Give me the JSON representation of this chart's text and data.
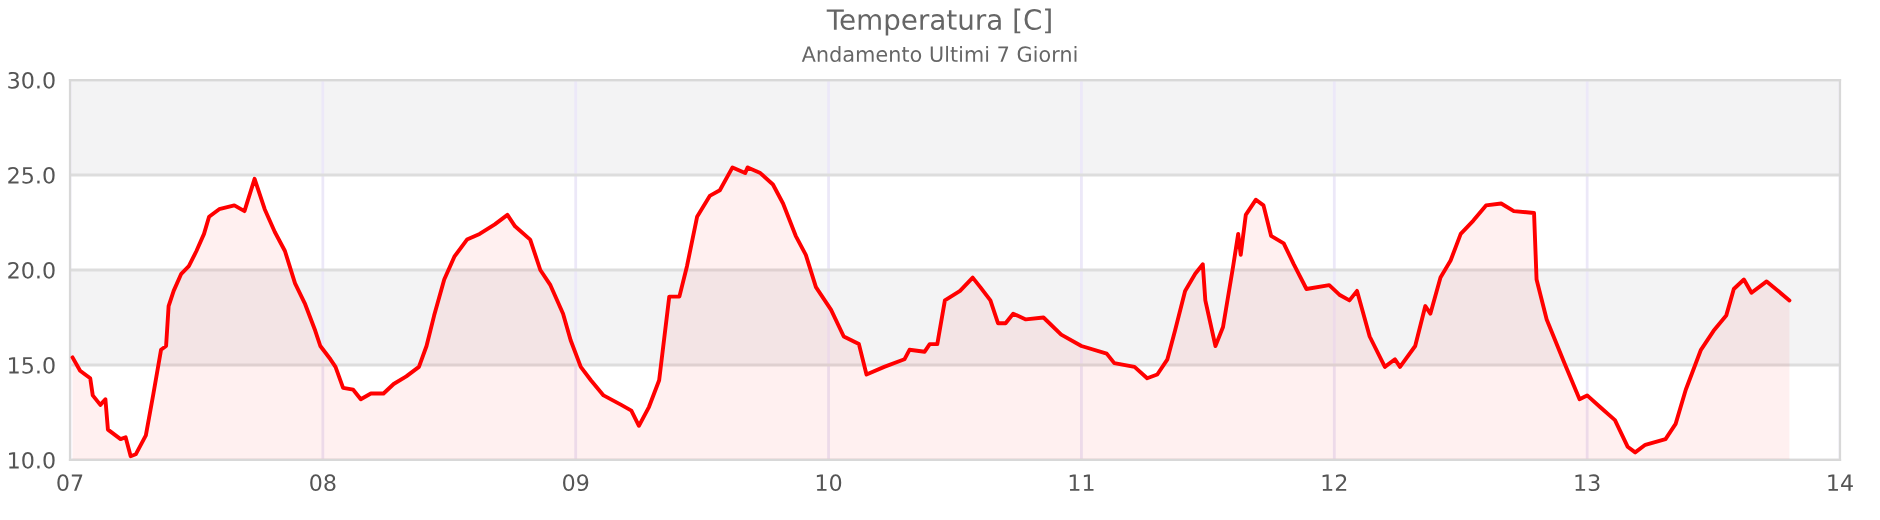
{
  "chart_data": {
    "type": "area",
    "title": "Temperatura [C]",
    "subtitle": "Andamento Ultimi 7 Giorni",
    "series": [
      {
        "color": "#ff0000",
        "x": [
          7.01,
          7.04,
          7.08,
          7.09,
          7.12,
          7.14,
          7.15,
          7.2,
          7.22,
          7.24,
          7.26,
          7.3,
          7.33,
          7.36,
          7.38,
          7.39,
          7.41,
          7.44,
          7.47,
          7.5,
          7.53,
          7.55,
          7.59,
          7.65,
          7.69,
          7.73,
          7.77,
          7.81,
          7.85,
          7.89,
          7.93,
          7.97,
          7.99,
          8.03,
          8.05,
          8.08,
          8.12,
          8.15,
          8.19,
          8.24,
          8.28,
          8.33,
          8.38,
          8.41,
          8.44,
          8.48,
          8.52,
          8.57,
          8.62,
          8.68,
          8.73,
          8.76,
          8.82,
          8.86,
          8.9,
          8.95,
          8.98,
          9.02,
          9.06,
          9.11,
          9.18,
          9.22,
          9.25,
          9.29,
          9.33,
          9.37,
          9.41,
          9.44,
          9.48,
          9.53,
          9.57,
          9.62,
          9.67,
          9.68,
          9.73,
          9.78,
          9.82,
          9.87,
          9.91,
          9.95,
          10.01,
          10.06,
          10.12,
          10.15,
          10.22,
          10.3,
          10.32,
          10.38,
          10.4,
          10.43,
          10.46,
          10.52,
          10.57,
          10.6,
          10.64,
          10.67,
          10.7,
          10.73,
          10.78,
          10.85,
          10.92,
          11.0,
          11.1,
          11.13,
          11.21,
          11.26,
          11.3,
          11.34,
          11.37,
          11.41,
          11.45,
          11.48,
          11.49,
          11.53,
          11.56,
          11.6,
          11.62,
          11.63,
          11.65,
          11.69,
          11.72,
          11.75,
          11.8,
          11.84,
          11.89,
          11.98,
          12.02,
          12.06,
          12.09,
          12.14,
          12.2,
          12.24,
          12.26,
          12.32,
          12.36,
          12.38,
          12.42,
          12.46,
          12.5,
          12.55,
          12.6,
          12.66,
          12.71,
          12.79,
          12.8,
          12.84,
          12.91,
          12.97,
          13.0,
          13.05,
          13.11,
          13.16,
          13.19,
          13.23,
          13.31,
          13.35,
          13.39,
          13.45,
          13.5,
          13.55,
          13.58,
          13.62,
          13.65,
          13.71,
          13.8
        ],
        "values": [
          15.4,
          14.7,
          14.3,
          13.4,
          12.9,
          13.2,
          11.6,
          11.1,
          11.2,
          10.2,
          10.3,
          11.3,
          13.5,
          15.8,
          16.0,
          18.1,
          18.9,
          19.8,
          20.2,
          21.0,
          21.9,
          22.8,
          23.2,
          23.4,
          23.1,
          24.8,
          23.2,
          22.0,
          21.0,
          19.3,
          18.2,
          16.8,
          16.0,
          15.3,
          14.9,
          13.8,
          13.7,
          13.2,
          13.5,
          13.5,
          14.0,
          14.4,
          14.9,
          16.0,
          17.6,
          19.5,
          20.7,
          21.6,
          21.9,
          22.4,
          22.9,
          22.3,
          21.6,
          20.0,
          19.2,
          17.7,
          16.3,
          14.9,
          14.2,
          13.4,
          12.9,
          12.6,
          11.8,
          12.8,
          14.2,
          18.6,
          18.6,
          20.2,
          22.8,
          23.9,
          24.2,
          25.4,
          25.1,
          25.4,
          25.1,
          24.5,
          23.5,
          21.8,
          20.8,
          19.1,
          17.9,
          16.5,
          16.1,
          14.5,
          14.9,
          15.3,
          15.8,
          15.7,
          16.1,
          16.1,
          18.4,
          18.9,
          19.6,
          19.1,
          18.4,
          17.2,
          17.2,
          17.7,
          17.4,
          17.5,
          16.6,
          16.0,
          15.6,
          15.1,
          14.9,
          14.3,
          14.5,
          15.3,
          16.8,
          18.9,
          19.8,
          20.3,
          18.4,
          16.0,
          17.0,
          20.2,
          21.9,
          20.8,
          22.9,
          23.7,
          23.4,
          21.8,
          21.4,
          20.3,
          19.0,
          19.2,
          18.7,
          18.4,
          18.9,
          16.5,
          14.9,
          15.3,
          14.9,
          16.0,
          18.1,
          17.7,
          19.6,
          20.5,
          21.9,
          22.6,
          23.4,
          23.5,
          23.1,
          23.0,
          19.5,
          17.4,
          15.1,
          13.2,
          13.4,
          12.8,
          12.1,
          10.7,
          10.4,
          10.8,
          11.1,
          11.9,
          13.7,
          15.8,
          16.8,
          17.6,
          19.0,
          19.5,
          18.8,
          19.4,
          18.4
        ]
      }
    ],
    "xlim": [
      7,
      14
    ],
    "xticks": [
      {
        "value": 7,
        "label": "07"
      },
      {
        "value": 8,
        "label": "08"
      },
      {
        "value": 9,
        "label": "09"
      },
      {
        "value": 10,
        "label": "10"
      },
      {
        "value": 11,
        "label": "11"
      },
      {
        "value": 12,
        "label": "12"
      },
      {
        "value": 13,
        "label": "13"
      },
      {
        "value": 14,
        "label": "14"
      }
    ],
    "ylim": [
      10,
      30
    ],
    "yticks": [
      {
        "value": 10,
        "label": "10.0"
      },
      {
        "value": 15,
        "label": "15.0"
      },
      {
        "value": 20,
        "label": "20.0"
      },
      {
        "value": 25,
        "label": "25.0"
      },
      {
        "value": 30,
        "label": "30.0"
      }
    ],
    "bands": [
      {
        "axis": "y",
        "from": 15,
        "to": 20,
        "color": "#f3f3f4"
      },
      {
        "axis": "y",
        "from": 25,
        "to": 30,
        "color": "#f3f3f4"
      }
    ],
    "grid": true,
    "line_style": "solid",
    "marker": "none",
    "legend": false
  }
}
